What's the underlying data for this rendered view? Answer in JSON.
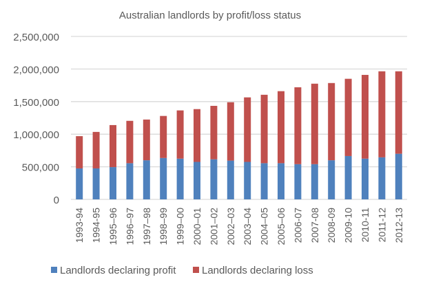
{
  "chart_data": {
    "type": "bar",
    "stacked": true,
    "title": "Australian landlords by profit/loss status",
    "xlabel": "",
    "ylabel": "",
    "ylim": [
      0,
      2500000
    ],
    "yticks": [
      0,
      500000,
      1000000,
      1500000,
      2000000,
      2500000
    ],
    "ytick_labels": [
      "0",
      "500,000",
      "1,000,000",
      "1,500,000",
      "2,000,000",
      "2,500,000"
    ],
    "grid": true,
    "legend": "bottom",
    "categories": [
      "1993-94",
      "1994-95",
      "1995–96",
      "1996–97",
      "1997–98",
      "1998–99",
      "1999–00",
      "2000–01",
      "2001–02",
      "2002–03",
      "2003–04",
      "2004–05",
      "2005–06",
      "2006-07",
      "2007-08",
      "2008-09",
      "2009-10",
      "2010-11",
      "2011-12",
      "2012-13"
    ],
    "series": [
      {
        "name": "Landlords declaring profit",
        "color": "#4f81bd",
        "values": [
          475000,
          475000,
          495000,
          555000,
          600000,
          635000,
          625000,
          575000,
          615000,
          595000,
          575000,
          555000,
          555000,
          540000,
          540000,
          600000,
          665000,
          625000,
          645000,
          700000
        ]
      },
      {
        "name": "Landlords declaring loss",
        "color": "#c0504d",
        "values": [
          495000,
          560000,
          645000,
          650000,
          625000,
          645000,
          740000,
          810000,
          820000,
          895000,
          990000,
          1050000,
          1105000,
          1180000,
          1235000,
          1185000,
          1185000,
          1285000,
          1320000,
          1265000
        ]
      }
    ]
  }
}
